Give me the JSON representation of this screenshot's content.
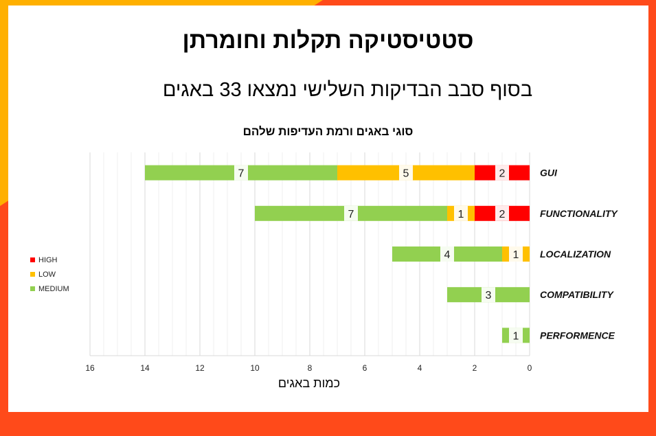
{
  "slide": {
    "title": "סטטיסטיקה תקלות וחומרתן",
    "subtitle": "בסוף סבב הבדיקות השלישי נמצאו 33 באגים"
  },
  "colors": {
    "HIGH": "#ff0000",
    "LOW": "#ffc000",
    "MEDIUM": "#92d050",
    "accent": "#ff4a1a"
  },
  "chart_data": {
    "type": "bar",
    "orientation": "horizontal",
    "stacked": true,
    "x_reversed": true,
    "title": "סוגי באגים ורמת העדיפות שלהם",
    "xlabel": "כמות באגים",
    "ylabel": "",
    "xlim": [
      0,
      16
    ],
    "xticks": [
      16,
      14,
      12,
      10,
      8,
      6,
      4,
      2,
      0
    ],
    "grid": true,
    "legend_position": "left",
    "categories": [
      "GUI",
      "FUNCTIONALITY",
      "LOCALIZATION",
      "COMPATIBILITY",
      "PERFORMENCE"
    ],
    "series": [
      {
        "name": "HIGH",
        "values": [
          2,
          2,
          0,
          0,
          0
        ]
      },
      {
        "name": "LOW",
        "values": [
          5,
          1,
          1,
          0,
          0
        ]
      },
      {
        "name": "MEDIUM",
        "values": [
          7,
          7,
          4,
          3,
          1
        ]
      }
    ]
  }
}
